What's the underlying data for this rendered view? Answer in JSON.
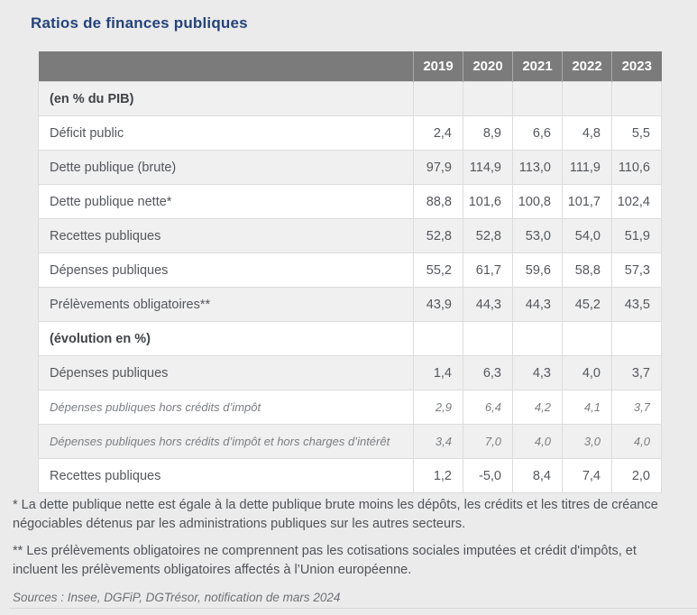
{
  "page": {
    "title": "Ratios de finances publiques"
  },
  "table": {
    "years": [
      "2019",
      "2020",
      "2021",
      "2022",
      "2023"
    ],
    "rows": [
      {
        "label": "(en % du PIB)",
        "style": "section",
        "values": [
          "",
          "",
          "",
          "",
          ""
        ]
      },
      {
        "label": "Déficit public",
        "style": "normal",
        "values": [
          "2,4",
          "8,9",
          "6,6",
          "4,8",
          "5,5"
        ]
      },
      {
        "label": "Dette publique (brute)",
        "style": "normal",
        "values": [
          "97,9",
          "114,9",
          "113,0",
          "111,9",
          "110,6"
        ]
      },
      {
        "label": "Dette publique nette*",
        "style": "normal",
        "values": [
          "88,8",
          "101,6",
          "100,8",
          "101,7",
          "102,4"
        ]
      },
      {
        "label": "Recettes publiques",
        "style": "normal",
        "values": [
          "52,8",
          "52,8",
          "53,0",
          "54,0",
          "51,9"
        ]
      },
      {
        "label": "Dépenses publiques",
        "style": "normal",
        "values": [
          "55,2",
          "61,7",
          "59,6",
          "58,8",
          "57,3"
        ]
      },
      {
        "label": "Prélèvements obligatoires**",
        "style": "normal",
        "values": [
          "43,9",
          "44,3",
          "44,3",
          "45,2",
          "43,5"
        ]
      },
      {
        "label": "(évolution en %)",
        "style": "section",
        "values": [
          "",
          "",
          "",
          "",
          ""
        ]
      },
      {
        "label": "Dépenses publiques",
        "style": "normal",
        "values": [
          "1,4",
          "6,3",
          "4,3",
          "4,0",
          "3,7"
        ]
      },
      {
        "label": "Dépenses publiques hors crédits d’impôt",
        "style": "italic",
        "values": [
          "2,9",
          "6,4",
          "4,2",
          "4,1",
          "3,7"
        ]
      },
      {
        "label": "Dépenses publiques hors crédits d’impôt et hors charges d’intérêt",
        "style": "italic",
        "values": [
          "3,4",
          "7,0",
          "4,0",
          "3,0",
          "4,0"
        ]
      },
      {
        "label": "Recettes publiques",
        "style": "normal",
        "values": [
          "1,2",
          "-5,0",
          "8,4",
          "7,4",
          "2,0"
        ]
      }
    ]
  },
  "footnotes": {
    "note1": "* La dette publique nette est égale à la dette publique brute moins les dépôts, les crédits et les titres de créance négociables détenus par les administrations publiques sur les autres secteurs.",
    "note2": "** Les prélèvements obligatoires ne comprennent pas les cotisations sociales imputées et crédit d'impôts, et incluent les prélèvements obligatoires affectés à l’Union européenne.",
    "sources": "Sources : Insee, DGFiP, DGTrésor, notification de mars 2024"
  },
  "colors": {
    "title": "#24437c",
    "header_bg": "#7b7b7b",
    "row_alt_bg": "#f0f0f0",
    "row_bg": "#ffffff",
    "border": "#dcdcdc",
    "page_bg": "#ebebeb",
    "text": "#54575c"
  }
}
